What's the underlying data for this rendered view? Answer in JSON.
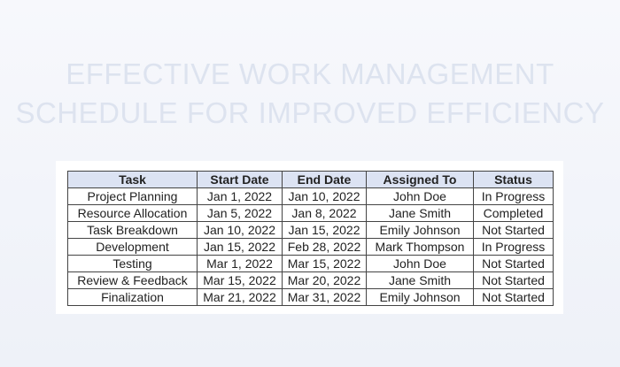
{
  "title_line1": "EFFECTIVE WORK MANAGEMENT",
  "title_line2": "SCHEDULE FOR IMPROVED EFFICIENCY",
  "table": {
    "headers": [
      "Task",
      "Start Date",
      "End Date",
      "Assigned To",
      "Status"
    ],
    "rows": [
      [
        "Project Planning",
        "Jan 1, 2022",
        "Jan 10, 2022",
        "John Doe",
        "In Progress"
      ],
      [
        "Resource Allocation",
        "Jan 5, 2022",
        "Jan 8, 2022",
        "Jane Smith",
        "Completed"
      ],
      [
        "Task Breakdown",
        "Jan 10, 2022",
        "Jan 15, 2022",
        "Emily Johnson",
        "Not Started"
      ],
      [
        "Development",
        "Jan 15, 2022",
        "Feb 28, 2022",
        "Mark Thompson",
        "In Progress"
      ],
      [
        "Testing",
        "Mar 1, 2022",
        "Mar 15, 2022",
        "John Doe",
        "Not Started"
      ],
      [
        "Review & Feedback",
        "Mar 15, 2022",
        "Mar 20, 2022",
        "Jane Smith",
        "Not Started"
      ],
      [
        "Finalization",
        "Mar 21, 2022",
        "Mar 31, 2022",
        "Emily Johnson",
        "Not Started"
      ]
    ]
  }
}
